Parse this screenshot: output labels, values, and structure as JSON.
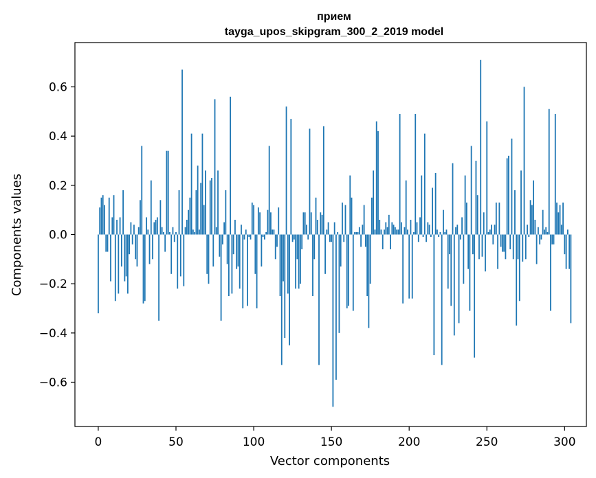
{
  "chart_data": {
    "type": "bar",
    "title": "прием",
    "subtitle": "tayga_upos_skipgram_300_2_2019 model",
    "xlabel": "Vector components",
    "ylabel": "Components values",
    "xlim": [
      -15,
      314
    ],
    "ylim": [
      -0.78,
      0.78
    ],
    "xticks": [
      0,
      50,
      100,
      150,
      200,
      250,
      300
    ],
    "yticks": [
      -0.6,
      -0.4,
      -0.2,
      0.0,
      0.2,
      0.4,
      0.6
    ],
    "ytick_labels": [
      "−0.6",
      "−0.4",
      "−0.2",
      "0.0",
      "0.2",
      "0.4",
      "0.6"
    ],
    "bar_color": "#1f77b4",
    "grid": false,
    "legend": "none",
    "values": [
      -0.32,
      0.11,
      0.15,
      0.16,
      0.12,
      -0.07,
      -0.07,
      0.15,
      -0.19,
      0.07,
      0.16,
      -0.27,
      0.06,
      -0.24,
      0.07,
      -0.13,
      0.18,
      -0.19,
      -0.17,
      -0.24,
      -0.08,
      0.05,
      -0.04,
      0.04,
      -0.1,
      -0.13,
      0.03,
      0.14,
      0.36,
      -0.28,
      -0.27,
      0.07,
      0.02,
      -0.12,
      0.22,
      -0.1,
      0.05,
      0.06,
      0.07,
      -0.35,
      0.14,
      0.03,
      0.01,
      -0.07,
      0.34,
      0.34,
      0.01,
      -0.16,
      0.03,
      -0.03,
      0.01,
      -0.22,
      0.18,
      -0.17,
      0.67,
      -0.21,
      0.03,
      0.06,
      0.1,
      0.15,
      0.41,
      0.02,
      0.01,
      0.18,
      0.28,
      0.02,
      0.21,
      0.41,
      0.12,
      0.26,
      -0.16,
      -0.2,
      0.22,
      0.23,
      -0.13,
      0.55,
      0.03,
      0.26,
      -0.09,
      -0.35,
      -0.04,
      0.05,
      0.18,
      -0.12,
      -0.25,
      0.56,
      -0.24,
      -0.08,
      0.06,
      -0.14,
      -0.13,
      -0.22,
      0.04,
      -0.3,
      -0.02,
      0.02,
      -0.29,
      -0.01,
      -0.02,
      0.13,
      0.12,
      -0.16,
      -0.3,
      0.11,
      0.09,
      -0.13,
      -0.01,
      -0.02,
      0.01,
      0.1,
      0.36,
      0.09,
      0.02,
      0.02,
      -0.1,
      -0.05,
      0.11,
      -0.25,
      -0.53,
      -0.19,
      -0.42,
      0.52,
      -0.24,
      -0.45,
      0.47,
      -0.03,
      -0.02,
      -0.22,
      -0.1,
      -0.22,
      -0.2,
      -0.06,
      0.09,
      0.09,
      0.04,
      -0.02,
      0.43,
      0.09,
      -0.25,
      -0.1,
      0.15,
      0.06,
      -0.53,
      0.09,
      0.08,
      0.44,
      -0.16,
      0.02,
      0.05,
      -0.03,
      -0.03,
      -0.7,
      0.05,
      -0.59,
      0.01,
      -0.4,
      -0.13,
      0.13,
      -0.03,
      0.12,
      -0.3,
      -0.29,
      0.24,
      0.15,
      -0.31,
      0.01,
      0.01,
      0.01,
      0.03,
      -0.05,
      0.04,
      0.12,
      -0.05,
      -0.25,
      -0.38,
      -0.2,
      0.15,
      0.26,
      0.02,
      0.46,
      0.42,
      0.06,
      0.02,
      -0.06,
      0.02,
      0.05,
      0.03,
      0.08,
      -0.06,
      0.05,
      0.04,
      0.03,
      0.02,
      0.02,
      0.49,
      0.05,
      -0.28,
      0.03,
      0.22,
      0.02,
      -0.26,
      0.06,
      -0.26,
      0.01,
      0.49,
      0.05,
      -0.03,
      0.07,
      0.24,
      -0.01,
      0.41,
      -0.03,
      0.05,
      0.04,
      -0.01,
      0.19,
      -0.49,
      0.25,
      0.02,
      -0.01,
      0.01,
      -0.53,
      0.1,
      0.01,
      0.02,
      -0.22,
      -0.08,
      -0.29,
      0.29,
      -0.41,
      0.03,
      0.04,
      -0.36,
      -0.02,
      0.07,
      -0.2,
      0.24,
      0.13,
      -0.14,
      -0.31,
      0.36,
      -0.08,
      -0.5,
      0.3,
      0.16,
      -0.1,
      0.71,
      -0.09,
      0.09,
      -0.15,
      0.46,
      0.01,
      0.02,
      0.04,
      -0.04,
      0.04,
      0.13,
      -0.14,
      0.13,
      -0.05,
      -0.07,
      -0.07,
      -0.1,
      0.31,
      0.32,
      -0.06,
      0.39,
      -0.1,
      0.18,
      -0.37,
      -0.1,
      -0.27,
      0.26,
      -0.11,
      0.6,
      -0.1,
      0.04,
      -0.01,
      0.14,
      0.12,
      0.22,
      0.06,
      -0.12,
      0.03,
      -0.04,
      -0.02,
      0.1,
      0.02,
      0.03,
      0.01,
      0.51,
      -0.31,
      -0.04,
      -0.04,
      0.49,
      0.13,
      0.09,
      0.12,
      0.04,
      0.13,
      -0.08,
      -0.14,
      0.02,
      -0.14,
      -0.36
    ]
  }
}
